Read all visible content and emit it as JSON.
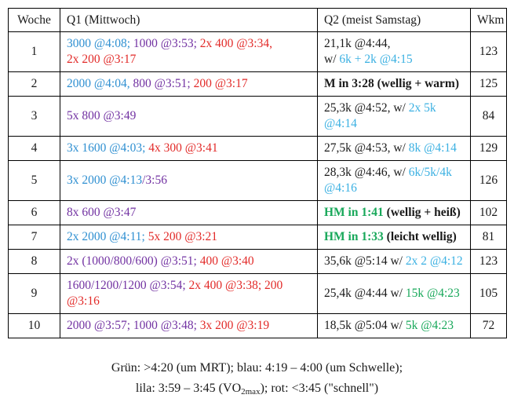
{
  "colors": {
    "black": "#1a1a1a",
    "blue": "#2e8fd1",
    "cyan": "#3ab0e2",
    "purple": "#7232a2",
    "red": "#e22a28",
    "green": "#18a85a"
  },
  "table": {
    "headers": [
      "Woche",
      "Q1 (Mittwoch)",
      "Q2 (meist Samstag)",
      "Wkm"
    ],
    "rows": [
      {
        "week": "1",
        "q1": [
          {
            "t": "3000 @4:08; ",
            "c": "blue"
          },
          {
            "t": "1000 @3:53; ",
            "c": "purple"
          },
          {
            "t": "2x 400 @3:34,",
            "c": "red"
          },
          {
            "br": true
          },
          {
            "t": "2x 200 @3:17",
            "c": "red"
          }
        ],
        "q2": [
          {
            "t": "21,1k @4:44,",
            "c": "black"
          },
          {
            "br": true
          },
          {
            "t": "w/ ",
            "c": "black"
          },
          {
            "t": "6k + 2k @4:15",
            "c": "cyan"
          }
        ],
        "wkm": "123"
      },
      {
        "week": "2",
        "q1": [
          {
            "t": "2000 @4:04, ",
            "c": "blue"
          },
          {
            "t": "800 @3:51; ",
            "c": "purple"
          },
          {
            "t": "200 @3:17",
            "c": "red"
          }
        ],
        "q2": [
          {
            "t": "M in 3:28 (wellig + warm)",
            "c": "black",
            "b": true
          }
        ],
        "wkm": "125"
      },
      {
        "week": "3",
        "q1": [
          {
            "t": "5x 800 @3:49",
            "c": "purple"
          }
        ],
        "q2": [
          {
            "t": "25,3k @4:52, w/ ",
            "c": "black"
          },
          {
            "t": "2x 5k @4:14",
            "c": "cyan"
          }
        ],
        "wkm": "84"
      },
      {
        "week": "4",
        "q1": [
          {
            "t": "3x 1600 @4:03; ",
            "c": "blue"
          },
          {
            "t": "4x 300 @3:41",
            "c": "red"
          }
        ],
        "q2": [
          {
            "t": "27,5k @4:53, w/ ",
            "c": "black"
          },
          {
            "t": "8k @4:14",
            "c": "cyan"
          }
        ],
        "wkm": "129"
      },
      {
        "week": "5",
        "q1": [
          {
            "t": "3x 2000 @4:13",
            "c": "blue"
          },
          {
            "t": "/3:56",
            "c": "purple"
          }
        ],
        "q2": [
          {
            "t": "28,3k @4:46, w/ ",
            "c": "black"
          },
          {
            "t": "6k/5k/4k @4:16",
            "c": "cyan"
          }
        ],
        "wkm": "126"
      },
      {
        "week": "6",
        "q1": [
          {
            "t": "8x 600 @3:47",
            "c": "purple"
          }
        ],
        "q2": [
          {
            "t": "HM in 1:41",
            "c": "green",
            "b": true
          },
          {
            "t": " (wellig + heiß)",
            "c": "black",
            "b": true
          }
        ],
        "wkm": "102"
      },
      {
        "week": "7",
        "q1": [
          {
            "t": "2x 2000 @4:11; ",
            "c": "blue"
          },
          {
            "t": "5x 200 @3:21",
            "c": "red"
          }
        ],
        "q2": [
          {
            "t": "HM in 1:33",
            "c": "green",
            "b": true
          },
          {
            "t": " (leicht wellig)",
            "c": "black",
            "b": true
          }
        ],
        "wkm": "81"
      },
      {
        "week": "8",
        "q1": [
          {
            "t": "2x (1000/800/600) @3:51; ",
            "c": "purple"
          },
          {
            "t": "400 @3:40",
            "c": "red"
          }
        ],
        "q2": [
          {
            "t": "35,6k @5:14 w/ ",
            "c": "black"
          },
          {
            "t": "2x 2 @4:12",
            "c": "cyan"
          }
        ],
        "wkm": "123"
      },
      {
        "week": "9",
        "q1": [
          {
            "t": "1600/1200/1200 @3:54; ",
            "c": "purple"
          },
          {
            "t": "2x 400 @3:38; ",
            "c": "red"
          },
          {
            "t": "200 @3:16",
            "c": "red"
          }
        ],
        "q2": [
          {
            "t": "25,4k @4:44 w/ ",
            "c": "black"
          },
          {
            "t": "15k @4:23",
            "c": "green"
          }
        ],
        "wkm": "105"
      },
      {
        "week": "10",
        "q1": [
          {
            "t": "2000 @3:57; ",
            "c": "purple"
          },
          {
            "t": "1000 @3:48; ",
            "c": "purple"
          },
          {
            "t": "3x 200 @3:19",
            "c": "red"
          }
        ],
        "q2": [
          {
            "t": "18,5k @5:04 w/ ",
            "c": "black"
          },
          {
            "t": "5k @4:23",
            "c": "green"
          }
        ],
        "wkm": "72"
      }
    ]
  },
  "legend": {
    "line1": "Grün: >4:20 (um MRT); blau: 4:19 – 4:00 (um Schwelle);",
    "line2": [
      {
        "t": "lila: 3:59 – 3:45 (VO"
      },
      {
        "t": "2max",
        "sub": true
      },
      {
        "t": "); rot: <3:45 (\"schnell\")"
      }
    ]
  }
}
